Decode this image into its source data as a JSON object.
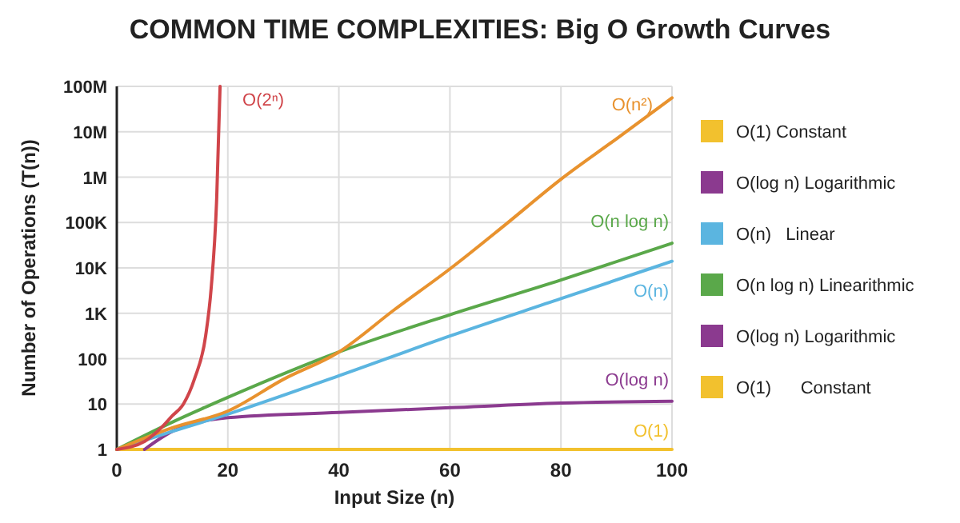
{
  "chart_data": {
    "type": "line",
    "title": "COMMON TIME COMPLEXITIES: Big O Growth Curves",
    "xlabel": "Input Size (n)",
    "ylabel": "Number of Operations (T(n))",
    "log": "y",
    "grid": true,
    "legend": "right",
    "xlim": [
      0,
      100
    ],
    "xticks": [
      0,
      20,
      40,
      60,
      80,
      100
    ],
    "ylim": [
      1,
      100000000
    ],
    "yticks": [
      {
        "value": 1,
        "label": "1"
      },
      {
        "value": 10,
        "label": "10"
      },
      {
        "value": 100,
        "label": "100"
      },
      {
        "value": 1000,
        "label": "1K"
      },
      {
        "value": 10000,
        "label": "10K"
      },
      {
        "value": 100000,
        "label": "100K"
      },
      {
        "value": 1000000,
        "label": "1M"
      },
      {
        "value": 10000000,
        "label": "10M"
      },
      {
        "value": 100000000,
        "label": "100M"
      }
    ],
    "series": [
      {
        "name": "O(1)",
        "color": "#f2c12e",
        "x": [
          0,
          100
        ],
        "values": [
          1,
          1
        ]
      },
      {
        "name": "O(log n)",
        "color": "#8b3a8f",
        "x": [
          5,
          10,
          20,
          40,
          60,
          80,
          100
        ],
        "values": [
          1,
          2.5,
          5,
          6.5,
          8.3,
          10.5,
          11.5
        ]
      },
      {
        "name": "O(n)",
        "color": "#5bb5e0",
        "x": [
          0,
          10,
          20,
          40,
          60,
          80,
          100
        ],
        "values": [
          1,
          2.5,
          6,
          42,
          316,
          2100,
          14000
        ]
      },
      {
        "name": "O(n log n)",
        "color": "#5aa84a",
        "x": [
          0,
          10,
          20,
          40,
          60,
          80,
          100
        ],
        "values": [
          1,
          4,
          14,
          140,
          930,
          5400,
          35000
        ]
      },
      {
        "name": "O(n²)",
        "color": "#e8922e",
        "x": [
          0,
          10,
          20,
          30,
          40,
          50,
          60,
          70,
          80,
          90,
          100
        ],
        "values": [
          1,
          3,
          7,
          35,
          140,
          1200,
          9500,
          90000,
          900000,
          7000000,
          56000000
        ]
      },
      {
        "name": "O(2ⁿ)",
        "color": "#d0454a",
        "x": [
          0,
          5,
          8,
          10,
          12,
          14,
          16,
          17,
          18,
          18.6
        ],
        "values": [
          1,
          1.5,
          3,
          5.5,
          10,
          36,
          316,
          3600,
          360000,
          100000000
        ]
      },
      {
        "name": "O(1) Constant",
        "color": "#f2c12e"
      },
      {
        "name": "O(log n) Logarithmic",
        "color": "#8b3a8f"
      },
      {
        "name": "O(n)   Linear",
        "color": "#5bb5e0"
      },
      {
        "name": "O(n log n) Linearithmic",
        "color": "#5aa84a"
      },
      {
        "name": "O(log n) Logarithmic",
        "color": "#8b3a8f"
      },
      {
        "name": "O(1)      Constant",
        "color": "#f2c12e"
      }
    ]
  }
}
